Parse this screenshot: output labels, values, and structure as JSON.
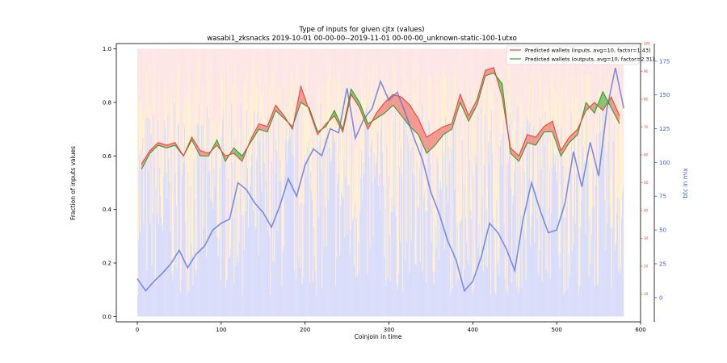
{
  "chart_data": {
    "type": "line",
    "title": "Type of inputs for given cjtx (values)",
    "subtitle": "wasabi1_zksnacks 2019-10-01 00-00-00--2019-11-01 00-00-00_unknown-static-100-1utxo",
    "xlabel": "Coinjoin in time",
    "ylabel": "Fraction of inputs values",
    "ylabel_right": "btc in mix",
    "xlim": [
      -25,
      600
    ],
    "ylim": [
      -0.02,
      1.02
    ],
    "xticks": [
      "0",
      "100",
      "200",
      "300",
      "400",
      "500",
      "600"
    ],
    "yticks": [
      "0.0",
      "0.2",
      "0.4",
      "0.6",
      "0.8",
      "1.0"
    ],
    "y2lim": [
      -18,
      188
    ],
    "y2ticks": [
      "0",
      "25",
      "50",
      "75",
      "100",
      "125",
      "150",
      "175"
    ],
    "y3lim": [
      0,
      100
    ],
    "y3ticks": [
      "10",
      "20",
      "30",
      "40",
      "50",
      "60",
      "70",
      "80",
      "90",
      "100"
    ],
    "grid": false,
    "legend_position": "top-right",
    "colors": {
      "inputs": "#e8463a",
      "outputs": "#3a9a2e",
      "btc": "#5b76de",
      "fill_over": "#f28b82",
      "fill_under": "#6fbf5e",
      "bars_blue": "#b9bff5",
      "bars_yellow": "#fde7b0",
      "bars_pink": "#fbd3d3",
      "right_axis_red": "#d63a2a",
      "right_axis_blue": "#3f5fd1"
    },
    "series": [
      {
        "name": "Predicted wallets (inputs, avg=10, factor=1.43)",
        "x": [
          5,
          15,
          25,
          35,
          45,
          55,
          65,
          75,
          85,
          95,
          105,
          115,
          125,
          135,
          145,
          155,
          165,
          175,
          185,
          195,
          205,
          215,
          225,
          235,
          245,
          255,
          265,
          275,
          285,
          295,
          305,
          315,
          325,
          335,
          345,
          355,
          365,
          375,
          385,
          395,
          405,
          415,
          425,
          435,
          445,
          455,
          465,
          475,
          485,
          495,
          505,
          515,
          525,
          535,
          545,
          555,
          565,
          575
        ],
        "values": [
          0.57,
          0.62,
          0.65,
          0.64,
          0.65,
          0.6,
          0.67,
          0.62,
          0.61,
          0.64,
          0.6,
          0.61,
          0.58,
          0.66,
          0.72,
          0.71,
          0.79,
          0.75,
          0.7,
          0.86,
          0.77,
          0.68,
          0.72,
          0.75,
          0.69,
          0.83,
          0.78,
          0.7,
          0.76,
          0.8,
          0.83,
          0.82,
          0.79,
          0.74,
          0.67,
          0.69,
          0.71,
          0.72,
          0.83,
          0.75,
          0.81,
          0.92,
          0.93,
          0.82,
          0.63,
          0.6,
          0.68,
          0.67,
          0.71,
          0.73,
          0.62,
          0.67,
          0.7,
          0.77,
          0.8,
          0.77,
          0.82,
          0.75
        ]
      },
      {
        "name": "Predicted wallets (outputs, avg=10, factor=2.31)",
        "x": [
          5,
          15,
          25,
          35,
          45,
          55,
          65,
          75,
          85,
          95,
          105,
          115,
          125,
          135,
          145,
          155,
          165,
          175,
          185,
          195,
          205,
          215,
          225,
          235,
          245,
          255,
          265,
          275,
          285,
          295,
          305,
          315,
          325,
          335,
          345,
          355,
          365,
          375,
          385,
          395,
          405,
          415,
          425,
          435,
          445,
          455,
          465,
          475,
          485,
          495,
          505,
          515,
          525,
          535,
          545,
          555,
          565,
          575
        ],
        "values": [
          0.55,
          0.61,
          0.64,
          0.63,
          0.64,
          0.6,
          0.66,
          0.6,
          0.6,
          0.66,
          0.58,
          0.63,
          0.6,
          0.65,
          0.7,
          0.69,
          0.77,
          0.74,
          0.71,
          0.8,
          0.78,
          0.69,
          0.71,
          0.77,
          0.7,
          0.85,
          0.8,
          0.72,
          0.74,
          0.76,
          0.79,
          0.75,
          0.71,
          0.68,
          0.61,
          0.64,
          0.68,
          0.7,
          0.8,
          0.73,
          0.79,
          0.9,
          0.91,
          0.87,
          0.61,
          0.58,
          0.65,
          0.64,
          0.69,
          0.69,
          0.6,
          0.65,
          0.68,
          0.8,
          0.76,
          0.84,
          0.78,
          0.72
        ]
      },
      {
        "name": "btc in mix",
        "axis": "right",
        "x": [
          0,
          10,
          20,
          30,
          40,
          50,
          60,
          70,
          80,
          90,
          100,
          110,
          120,
          130,
          140,
          150,
          160,
          170,
          180,
          190,
          200,
          210,
          220,
          230,
          240,
          250,
          260,
          270,
          280,
          290,
          300,
          310,
          320,
          330,
          340,
          350,
          360,
          370,
          380,
          390,
          400,
          410,
          420,
          430,
          440,
          450,
          460,
          470,
          480,
          490,
          500,
          510,
          520,
          530,
          540,
          550,
          560,
          570,
          580
        ],
        "values": [
          14,
          5,
          12,
          18,
          25,
          35,
          22,
          32,
          38,
          50,
          55,
          58,
          85,
          80,
          70,
          63,
          52,
          68,
          88,
          75,
          98,
          110,
          105,
          125,
          122,
          155,
          118,
          132,
          140,
          160,
          146,
          152,
          136,
          118,
          102,
          78,
          62,
          42,
          28,
          5,
          12,
          30,
          55,
          48,
          36,
          20,
          58,
          85,
          65,
          48,
          50,
          70,
          108,
          82,
          115,
          90,
          140,
          170,
          140
        ]
      }
    ]
  }
}
